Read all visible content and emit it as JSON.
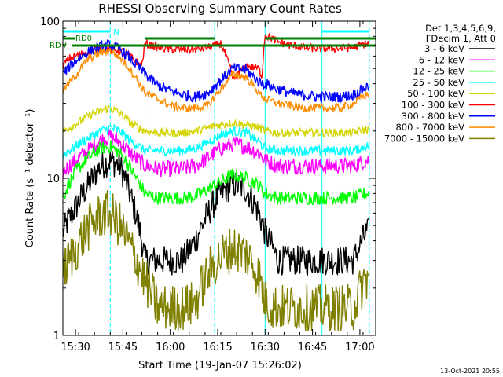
{
  "chart_data": {
    "type": "line",
    "title": "RHESSI Observing Summary Count Rates",
    "xlabel": "Start Time (19-Jan-07 15:26:02)",
    "ylabel": "Count Rate (s⁻¹ detector⁻¹)",
    "x_unit": "minutes after 15:26:02",
    "xlim": [
      0,
      99
    ],
    "ylim": [
      1,
      100
    ],
    "y_scale": "log",
    "grid": false,
    "legend_position": "top-right",
    "x_ticks": [
      {
        "value": 4.0,
        "label": "15:30"
      },
      {
        "value": 19.0,
        "label": "15:45"
      },
      {
        "value": 34.0,
        "label": "16:00"
      },
      {
        "value": 49.0,
        "label": "16:15"
      },
      {
        "value": 64.0,
        "label": "16:30"
      },
      {
        "value": 79.0,
        "label": "16:45"
      },
      {
        "value": 94.0,
        "label": "17:00"
      }
    ],
    "y_ticks": [
      {
        "value": 1,
        "label": "1"
      },
      {
        "value": 10,
        "label": "10"
      },
      {
        "value": 100,
        "label": "100"
      }
    ],
    "header_lines": [
      "Det 1,3,4,5,6,9,",
      "FDecim 1, Att 0"
    ],
    "series": [
      {
        "name": "3 - 6 keV",
        "color": "#000000",
        "x": [
          0,
          4,
          8,
          12,
          15,
          18,
          22,
          26,
          30,
          34,
          38,
          42,
          46,
          50,
          54,
          58,
          62,
          64,
          68,
          72,
          76,
          80,
          84,
          88,
          92,
          96
        ],
        "values": [
          4.5,
          6.5,
          9,
          12,
          13,
          12,
          7,
          3,
          3,
          3,
          3,
          4,
          6,
          8,
          9.2,
          8.5,
          6,
          4.5,
          3,
          3,
          3,
          3,
          3,
          3,
          3,
          4.5
        ]
      },
      {
        "name": "6 - 12 keV",
        "color": "#ff00ff",
        "x": [
          0,
          4,
          8,
          12,
          15,
          18,
          22,
          26,
          30,
          34,
          38,
          42,
          46,
          50,
          54,
          58,
          62,
          64,
          68,
          72,
          76,
          80,
          84,
          88,
          92,
          96
        ],
        "values": [
          11,
          13,
          15,
          17.5,
          18.5,
          17,
          14,
          12,
          11.5,
          11.5,
          11.5,
          12,
          13.5,
          15.5,
          16.5,
          16,
          14.5,
          13,
          12,
          12,
          12,
          12,
          12,
          12,
          12,
          13
        ]
      },
      {
        "name": "12 - 25 keV",
        "color": "#00ff00",
        "x": [
          0,
          4,
          8,
          12,
          15,
          18,
          22,
          26,
          30,
          34,
          38,
          42,
          46,
          50,
          54,
          58,
          62,
          64,
          68,
          72,
          76,
          80,
          84,
          88,
          92,
          96
        ],
        "values": [
          7.5,
          11,
          13.5,
          15.5,
          16,
          14.5,
          11,
          8,
          7.5,
          7.5,
          7.5,
          7.7,
          8.5,
          9.5,
          10.5,
          10,
          9,
          8,
          7.5,
          7.5,
          7.5,
          7.5,
          7.5,
          7.5,
          7.5,
          8
        ]
      },
      {
        "name": "25 - 50 keV",
        "color": "#00ffff",
        "x": [
          0,
          4,
          8,
          12,
          15,
          18,
          22,
          26,
          30,
          34,
          38,
          42,
          46,
          50,
          54,
          58,
          62,
          64,
          68,
          72,
          76,
          80,
          84,
          88,
          92,
          96
        ],
        "values": [
          14,
          16,
          18,
          20,
          21,
          20,
          17,
          15,
          15,
          15,
          15,
          15.5,
          17,
          19,
          20,
          19.5,
          17,
          15.5,
          15,
          15,
          15,
          15,
          15,
          15,
          15,
          16
        ]
      },
      {
        "name": "50 - 100 keV",
        "color": "#d4d400",
        "x": [
          0,
          4,
          8,
          12,
          15,
          18,
          22,
          26,
          30,
          34,
          38,
          42,
          46,
          50,
          54,
          58,
          62,
          64,
          68,
          72,
          76,
          80,
          84,
          88,
          92,
          96
        ],
        "values": [
          20,
          22,
          25,
          27,
          28,
          26,
          22,
          20,
          19.5,
          19.5,
          19.5,
          20,
          21,
          22,
          22.5,
          22,
          21,
          20,
          19.5,
          19.5,
          19.5,
          19.5,
          19.5,
          19.5,
          19.5,
          20.5
        ]
      },
      {
        "name": "100 - 300 keV",
        "color": "#ff0000",
        "x": [
          0,
          2,
          6,
          10,
          14,
          18,
          22,
          25,
          26,
          30,
          34,
          38,
          42,
          46,
          50,
          54,
          58,
          62,
          63,
          64,
          68,
          72,
          76,
          80,
          84,
          88,
          92,
          96
        ],
        "values": [
          52,
          58,
          62,
          66,
          67,
          65,
          58,
          52,
          72,
          68,
          66,
          66,
          66,
          68,
          72,
          42,
          52,
          50,
          44,
          82,
          74,
          70,
          68,
          67,
          67,
          67,
          68,
          72
        ]
      },
      {
        "name": "300 - 800 keV",
        "color": "#0000ff",
        "x": [
          0,
          4,
          8,
          12,
          15,
          18,
          22,
          26,
          30,
          34,
          38,
          42,
          46,
          50,
          54,
          58,
          62,
          64,
          68,
          72,
          76,
          80,
          84,
          88,
          92,
          96
        ],
        "values": [
          46,
          56,
          64,
          69,
          70,
          66,
          56,
          46,
          39,
          36,
          34,
          33,
          35,
          42,
          50,
          49,
          41,
          40,
          37,
          35,
          34,
          33,
          33,
          33,
          34,
          38
        ]
      },
      {
        "name": "800 - 7000 keV",
        "color": "#ff8c00",
        "x": [
          0,
          4,
          8,
          12,
          15,
          18,
          22,
          26,
          30,
          34,
          38,
          42,
          46,
          50,
          54,
          58,
          62,
          64,
          68,
          72,
          76,
          80,
          84,
          88,
          92,
          96
        ],
        "values": [
          36,
          45,
          57,
          63,
          65,
          59,
          47,
          35,
          32,
          29,
          28,
          28,
          29,
          37,
          46,
          44,
          35,
          32,
          30,
          29,
          28,
          28,
          28,
          28,
          30,
          34
        ]
      },
      {
        "name": "7000 - 15000 keV",
        "color": "#808000",
        "x": [
          0,
          4,
          8,
          12,
          15,
          18,
          22,
          26,
          30,
          34,
          38,
          42,
          46,
          50,
          54,
          58,
          62,
          64,
          68,
          72,
          76,
          80,
          84,
          88,
          92,
          96
        ],
        "values": [
          2.5,
          3.5,
          4.8,
          5.8,
          6,
          5,
          3.4,
          2.2,
          1.5,
          1.5,
          1.5,
          1.6,
          2.5,
          3.2,
          3.6,
          3.3,
          2.4,
          1.6,
          1.5,
          1.5,
          1.5,
          1.5,
          1.5,
          1.5,
          1.5,
          2.3
        ]
      }
    ],
    "annotations": {
      "night_marker": {
        "text": "N",
        "start": 0,
        "end": 15,
        "color": "#00ffff"
      },
      "night_marker_2": {
        "start": 82,
        "end": 97,
        "color": "#00ffff"
      },
      "flags": [
        {
          "text": "RD0",
          "color": "#008000"
        },
        {
          "text": "RD#",
          "color": "#008000"
        }
      ],
      "attenuator_level_hi": {
        "start": 26,
        "end": 48,
        "color": "#008000"
      },
      "attenuator_level_lo": {
        "start": 3,
        "end": 99,
        "color": "#008000"
      },
      "vlines_solid": [
        0,
        26,
        64,
        82
      ],
      "vlines_dashed": [
        15,
        48,
        97
      ]
    },
    "footer": "13-Oct-2021 20:55"
  }
}
